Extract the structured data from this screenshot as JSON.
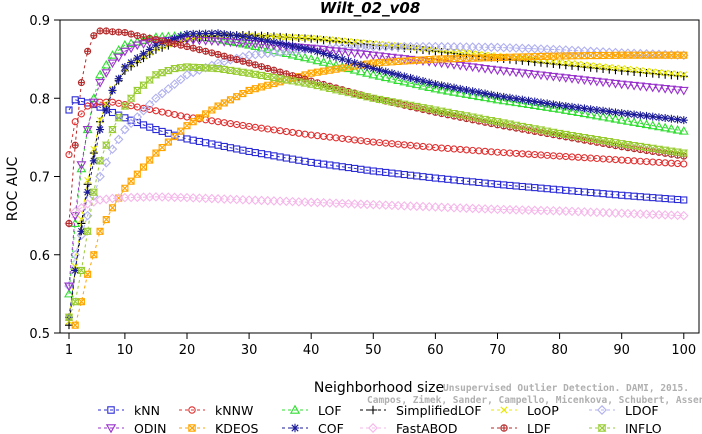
{
  "chart_data": {
    "type": "line",
    "title": "Wilt_02_v08",
    "xlabel": "Neighborhood size",
    "ylabel": "ROC AUC",
    "xlim": [
      0,
      100
    ],
    "ylim": [
      0.5,
      0.9
    ],
    "xticks": [
      1,
      10,
      20,
      30,
      40,
      50,
      60,
      70,
      80,
      90,
      100
    ],
    "yticks": [
      0.5,
      0.6,
      0.7,
      0.8,
      0.9
    ],
    "credit_lines": [
      "Unsupervised Outlier Detection. DAMI, 2015.",
      "Campos, Zimek, Sander, Campello, Micenkova, Schubert, Assent, Houle"
    ],
    "series": [
      {
        "name": "kNN",
        "color": "#2b2bd6",
        "marker": "square",
        "dash": "3,3",
        "x": [
          1,
          2,
          5,
          10,
          15,
          20,
          30,
          40,
          50,
          60,
          70,
          80,
          90,
          100
        ],
        "y": [
          0.785,
          0.798,
          0.792,
          0.775,
          0.76,
          0.748,
          0.732,
          0.718,
          0.707,
          0.698,
          0.69,
          0.683,
          0.676,
          0.67
        ]
      },
      {
        "name": "kNNW",
        "color": "#e03030",
        "marker": "circle",
        "dash": "3,3",
        "x": [
          1,
          2,
          4,
          6,
          8,
          10,
          15,
          20,
          30,
          40,
          50,
          60,
          70,
          80,
          90,
          100
        ],
        "y": [
          0.728,
          0.77,
          0.79,
          0.795,
          0.795,
          0.792,
          0.784,
          0.776,
          0.764,
          0.753,
          0.744,
          0.737,
          0.731,
          0.726,
          0.721,
          0.716
        ]
      },
      {
        "name": "LOF",
        "color": "#33dd33",
        "marker": "triangle",
        "dash": "3,3",
        "x": [
          1,
          2,
          3,
          4,
          5,
          6,
          8,
          10,
          15,
          20,
          25,
          30,
          40,
          50,
          60,
          70,
          80,
          90,
          100
        ],
        "y": [
          0.55,
          0.64,
          0.71,
          0.76,
          0.8,
          0.83,
          0.855,
          0.868,
          0.878,
          0.88,
          0.876,
          0.868,
          0.85,
          0.83,
          0.812,
          0.798,
          0.786,
          0.772,
          0.758
        ]
      },
      {
        "name": "SimplifiedLOF",
        "color": "#000000",
        "marker": "plus",
        "dash": "3,3",
        "x": [
          1,
          2,
          3,
          4,
          5,
          6,
          8,
          10,
          15,
          20,
          25,
          30,
          40,
          50,
          60,
          70,
          80,
          90,
          100
        ],
        "y": [
          0.51,
          0.58,
          0.64,
          0.69,
          0.73,
          0.77,
          0.81,
          0.835,
          0.862,
          0.875,
          0.88,
          0.881,
          0.876,
          0.868,
          0.86,
          0.851,
          0.843,
          0.835,
          0.828
        ]
      },
      {
        "name": "LoOP",
        "color": "#e8e800",
        "marker": "x",
        "dash": "3,3",
        "x": [
          1,
          2,
          3,
          4,
          5,
          6,
          8,
          10,
          15,
          20,
          25,
          30,
          40,
          50,
          60,
          70,
          80,
          90,
          100
        ],
        "y": [
          0.515,
          0.585,
          0.645,
          0.695,
          0.735,
          0.772,
          0.812,
          0.838,
          0.864,
          0.876,
          0.88,
          0.88,
          0.877,
          0.87,
          0.862,
          0.854,
          0.846,
          0.838,
          0.83
        ]
      },
      {
        "name": "LDOF",
        "color": "#b0b0f0",
        "marker": "diamond",
        "dash": "3,3",
        "x": [
          1,
          2,
          4,
          6,
          8,
          10,
          15,
          20,
          25,
          30,
          40,
          50,
          60,
          70,
          80,
          90,
          100
        ],
        "y": [
          0.56,
          0.6,
          0.65,
          0.7,
          0.735,
          0.76,
          0.8,
          0.83,
          0.845,
          0.855,
          0.863,
          0.866,
          0.866,
          0.865,
          0.862,
          0.858,
          0.855
        ]
      },
      {
        "name": "ODIN",
        "color": "#9933cc",
        "marker": "triangle-down",
        "dash": "3,3",
        "x": [
          1,
          2,
          3,
          4,
          5,
          6,
          8,
          10,
          12,
          15,
          20,
          25,
          30,
          40,
          50,
          60,
          70,
          80,
          90,
          100
        ],
        "y": [
          0.56,
          0.65,
          0.715,
          0.76,
          0.795,
          0.82,
          0.845,
          0.86,
          0.868,
          0.873,
          0.875,
          0.873,
          0.87,
          0.864,
          0.855,
          0.846,
          0.836,
          0.827,
          0.818,
          0.81
        ]
      },
      {
        "name": "KDEOS",
        "color": "#ffa500",
        "marker": "square-x",
        "dash": "3,3",
        "x": [
          1,
          2,
          3,
          4,
          5,
          6,
          8,
          10,
          15,
          20,
          25,
          30,
          40,
          50,
          60,
          70,
          80,
          90,
          100
        ],
        "y": [
          0.52,
          0.51,
          0.54,
          0.575,
          0.6,
          0.63,
          0.66,
          0.685,
          0.73,
          0.765,
          0.79,
          0.81,
          0.832,
          0.845,
          0.85,
          0.852,
          0.854,
          0.855,
          0.855
        ]
      },
      {
        "name": "COF",
        "color": "#1a1a99",
        "marker": "asterisk",
        "dash": "3,3",
        "x": [
          1,
          2,
          3,
          4,
          5,
          6,
          8,
          10,
          15,
          20,
          25,
          30,
          40,
          50,
          60,
          70,
          80,
          90,
          100
        ],
        "y": [
          0.52,
          0.58,
          0.63,
          0.68,
          0.72,
          0.76,
          0.81,
          0.84,
          0.868,
          0.882,
          0.883,
          0.878,
          0.862,
          0.838,
          0.818,
          0.803,
          0.791,
          0.781,
          0.772
        ]
      },
      {
        "name": "FastABOD",
        "color": "#f5b7ea",
        "marker": "diamond",
        "dash": "3,3",
        "x": [
          1,
          2,
          4,
          6,
          8,
          10,
          15,
          20,
          30,
          40,
          50,
          60,
          70,
          80,
          90,
          100
        ],
        "y": [
          0.64,
          0.655,
          0.665,
          0.67,
          0.672,
          0.673,
          0.674,
          0.673,
          0.67,
          0.667,
          0.664,
          0.661,
          0.658,
          0.656,
          0.653,
          0.65
        ]
      },
      {
        "name": "LDF",
        "color": "#b52a2a",
        "marker": "circle-plus",
        "dash": "3,3",
        "x": [
          1,
          2,
          3,
          4,
          5,
          6,
          7,
          8,
          10,
          12,
          15,
          20,
          25,
          30,
          40,
          50,
          60,
          70,
          80,
          90,
          100
        ],
        "y": [
          0.64,
          0.74,
          0.82,
          0.86,
          0.88,
          0.886,
          0.886,
          0.885,
          0.884,
          0.88,
          0.875,
          0.866,
          0.856,
          0.845,
          0.822,
          0.8,
          0.782,
          0.766,
          0.752,
          0.738,
          0.726
        ]
      },
      {
        "name": "INFLO",
        "color": "#99cc33",
        "marker": "hourglass",
        "dash": "3,3",
        "x": [
          1,
          2,
          3,
          4,
          5,
          6,
          8,
          10,
          12,
          15,
          18,
          20,
          25,
          30,
          40,
          50,
          60,
          70,
          80,
          90,
          100
        ],
        "y": [
          0.52,
          0.54,
          0.58,
          0.63,
          0.68,
          0.72,
          0.76,
          0.79,
          0.81,
          0.83,
          0.838,
          0.84,
          0.838,
          0.832,
          0.818,
          0.8,
          0.785,
          0.77,
          0.755,
          0.742,
          0.73
        ]
      }
    ],
    "legend": {
      "placement": "bottom",
      "rows": [
        [
          "kNN",
          "kNNW",
          "LOF",
          "SimplifiedLOF",
          "LoOP",
          "LDOF"
        ],
        [
          "ODIN",
          "KDEOS",
          "COF",
          "FastABOD",
          "LDF",
          "INFLO"
        ]
      ]
    },
    "grid": false
  }
}
